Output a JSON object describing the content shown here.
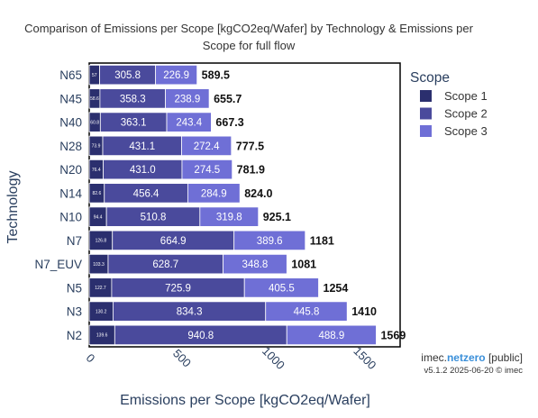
{
  "chart_data": {
    "type": "bar",
    "orientation": "horizontal",
    "stacked": true,
    "title": "Comparison of Emissions per Scope [kgCO2eq/Wafer] by Technology & Emissions per Scope for full flow",
    "title_lines": [
      "Comparison of Emissions per Scope [kgCO2eq/Wafer] by Technology & Emissions per",
      "Scope for full flow"
    ],
    "xlabel": "Emissions per Scope [kgCO2eq/Wafer]",
    "ylabel": "Technology",
    "xlim": [
      0,
      1700
    ],
    "xticks": [
      0,
      500,
      1000,
      1500
    ],
    "xtick_labels": [
      "0",
      "500",
      "1000",
      "1500"
    ],
    "grid": false,
    "legend_title": "Scope",
    "legend_position": "right",
    "categories": [
      "N65",
      "N45",
      "N40",
      "N28",
      "N20",
      "N14",
      "N10",
      "N7",
      "N7_EUV",
      "N5",
      "N3",
      "N2"
    ],
    "series": [
      {
        "name": "Scope 1",
        "color": "#2b2f6e",
        "values": [
          57.0,
          58.6,
          60.8,
          73.9,
          76.4,
          82.6,
          94.4,
          126.8,
          103.3,
          122.7,
          130.2,
          139.6
        ],
        "labels": [
          "57",
          "58.6",
          "60.8",
          "73.9",
          "76.4",
          "82.6",
          "94.4",
          "126.8",
          "103.3",
          "122.7",
          "130.2",
          "139.6"
        ]
      },
      {
        "name": "Scope 2",
        "color": "#4a4a9c",
        "values": [
          305.8,
          358.3,
          363.1,
          431.1,
          431.0,
          456.4,
          510.8,
          664.9,
          628.7,
          725.9,
          834.3,
          940.8
        ],
        "labels": [
          "305.8",
          "358.3",
          "363.1",
          "431.1",
          "431.0",
          "456.4",
          "510.8",
          "664.9",
          "628.7",
          "725.9",
          "834.3",
          "940.8"
        ]
      },
      {
        "name": "Scope 3",
        "color": "#6f6fd6",
        "values": [
          226.9,
          238.9,
          243.4,
          272.4,
          274.5,
          284.9,
          319.8,
          389.6,
          348.8,
          405.5,
          445.8,
          488.9
        ],
        "labels": [
          "226.9",
          "238.9",
          "243.4",
          "272.4",
          "274.5",
          "284.9",
          "319.8",
          "389.6",
          "348.8",
          "405.5",
          "445.8",
          "488.9"
        ]
      }
    ],
    "totals": [
      589.5,
      655.7,
      667.3,
      777.5,
      781.9,
      824.0,
      925.1,
      1181,
      1081,
      1254,
      1410,
      1569
    ],
    "total_labels": [
      "589.5",
      "655.7",
      "667.3",
      "777.5",
      "781.9",
      "824.0",
      "925.1",
      "1181",
      "1081",
      "1254",
      "1410",
      "1569"
    ]
  },
  "branding": {
    "prefix": "imec.",
    "highlight": "netzero",
    "suffix": " [public]",
    "highlight_color": "#3a8fd9",
    "version_line": "v5.1.2  2025-06-20 © imec"
  },
  "colors": {
    "text": "#333333",
    "axis_text": "#2a3f5f",
    "plot_border": "#000000",
    "bar_outline": "#ffffff",
    "total_label": "#111111"
  }
}
